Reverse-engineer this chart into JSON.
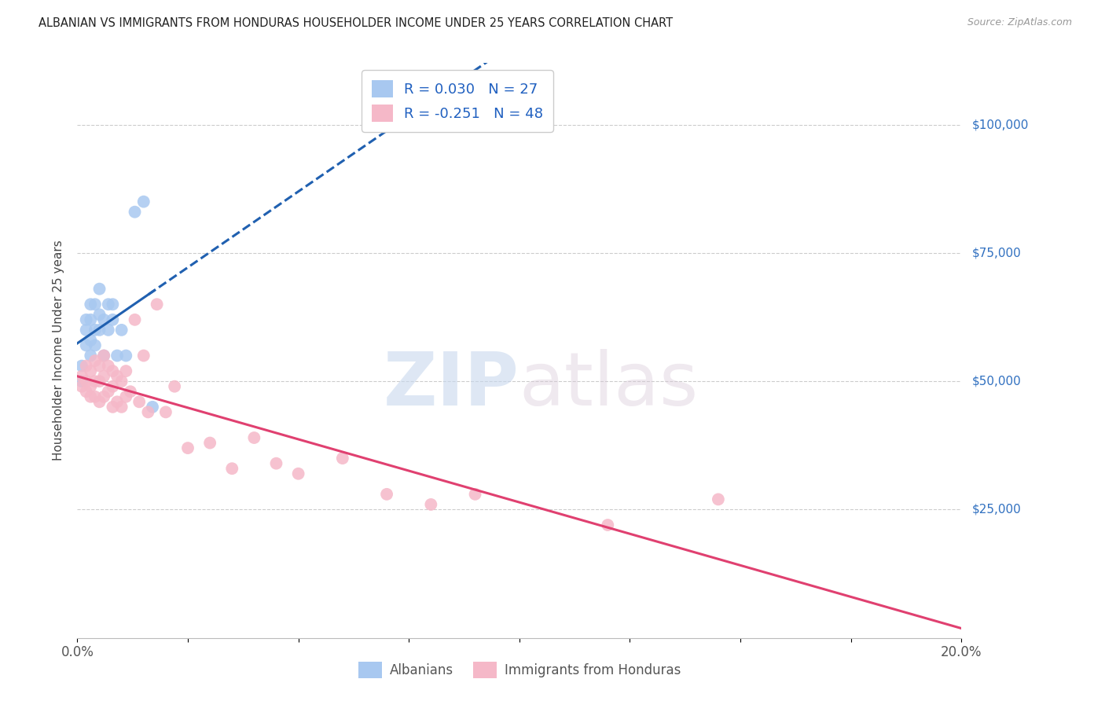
{
  "title": "ALBANIAN VS IMMIGRANTS FROM HONDURAS HOUSEHOLDER INCOME UNDER 25 YEARS CORRELATION CHART",
  "source": "Source: ZipAtlas.com",
  "ylabel": "Householder Income Under 25 years",
  "ytick_labels": [
    "$25,000",
    "$50,000",
    "$75,000",
    "$100,000"
  ],
  "ytick_values": [
    25000,
    50000,
    75000,
    100000
  ],
  "ylim": [
    0,
    112000
  ],
  "xlim": [
    0.0,
    0.2
  ],
  "legend_r1": "0.030",
  "legend_n1": "27",
  "legend_r2": "-0.251",
  "legend_n2": "48",
  "color_albanian": "#a8c8f0",
  "color_honduran": "#f5b8c8",
  "color_albanian_line": "#2060b0",
  "color_honduran_line": "#e04070",
  "watermark_zip": "ZIP",
  "watermark_atlas": "atlas",
  "albanians_x": [
    0.001,
    0.001,
    0.002,
    0.002,
    0.002,
    0.003,
    0.003,
    0.003,
    0.003,
    0.004,
    0.004,
    0.004,
    0.005,
    0.005,
    0.005,
    0.006,
    0.006,
    0.007,
    0.007,
    0.008,
    0.008,
    0.009,
    0.01,
    0.011,
    0.013,
    0.015,
    0.017
  ],
  "albanians_y": [
    53000,
    50000,
    62000,
    60000,
    57000,
    65000,
    62000,
    58000,
    55000,
    65000,
    60000,
    57000,
    68000,
    63000,
    60000,
    62000,
    55000,
    65000,
    60000,
    65000,
    62000,
    55000,
    60000,
    55000,
    83000,
    85000,
    45000
  ],
  "hondurans_x": [
    0.001,
    0.001,
    0.002,
    0.002,
    0.002,
    0.003,
    0.003,
    0.003,
    0.004,
    0.004,
    0.004,
    0.005,
    0.005,
    0.005,
    0.006,
    0.006,
    0.006,
    0.007,
    0.007,
    0.008,
    0.008,
    0.008,
    0.009,
    0.009,
    0.01,
    0.01,
    0.011,
    0.011,
    0.012,
    0.013,
    0.014,
    0.015,
    0.016,
    0.018,
    0.02,
    0.022,
    0.025,
    0.03,
    0.035,
    0.04,
    0.045,
    0.05,
    0.06,
    0.07,
    0.08,
    0.09,
    0.12,
    0.145
  ],
  "hondurans_y": [
    51000,
    49000,
    53000,
    50000,
    48000,
    52000,
    49000,
    47000,
    54000,
    50000,
    47000,
    53000,
    50000,
    46000,
    55000,
    51000,
    47000,
    53000,
    48000,
    52000,
    49000,
    45000,
    51000,
    46000,
    50000,
    45000,
    52000,
    47000,
    48000,
    62000,
    46000,
    55000,
    44000,
    65000,
    44000,
    49000,
    37000,
    38000,
    33000,
    39000,
    34000,
    32000,
    35000,
    28000,
    26000,
    28000,
    22000,
    27000
  ]
}
